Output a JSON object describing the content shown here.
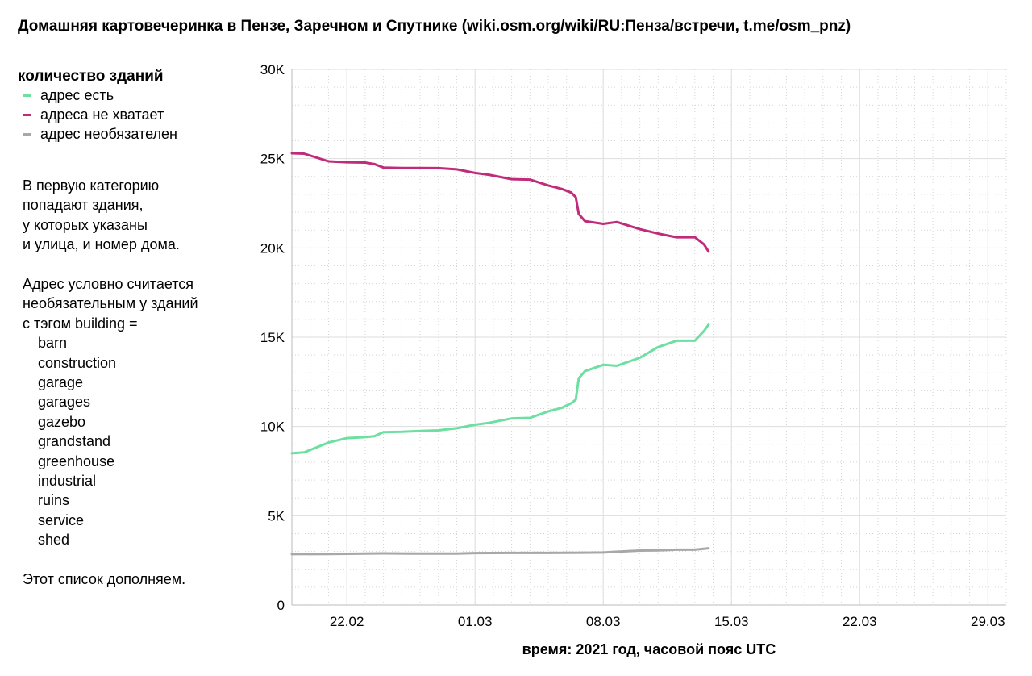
{
  "title": "Домашняя картовечеринка в Пензе, Заречном и Спутнике (wiki.osm.org/wiki/RU:Пенза/встречи, t.me/osm_pnz)",
  "legend": {
    "title": "количество зданий",
    "items": [
      {
        "label": "адрес есть",
        "color": "#6ddfa0"
      },
      {
        "label": "адреса не хватает",
        "color": "#c02c7a"
      },
      {
        "label": "адрес необязателен",
        "color": "#a8a8a8"
      }
    ]
  },
  "notes": {
    "para1": [
      "В первую категорию",
      "попадают здания,",
      "у которых указаны",
      "и улица, и номер дома."
    ],
    "para2": [
      "Адрес условно считается",
      "необязательным у зданий",
      "с тэгом building ="
    ],
    "tags": [
      "barn",
      "construction",
      "garage",
      "garages",
      "gazebo",
      "grandstand",
      "greenhouse",
      "industrial",
      "ruins",
      "service",
      "shed"
    ],
    "footer": "Этот список дополняем."
  },
  "chart_data": {
    "type": "line",
    "xlabel": "время: 2021 год, часовой пояс UTC",
    "ylabel": "",
    "x_range": [
      "2021-02-19",
      "2021-03-30"
    ],
    "ylim": [
      0,
      30000
    ],
    "x_ticks": [
      {
        "date": "2021-02-22",
        "label": "22.02"
      },
      {
        "date": "2021-03-01",
        "label": "01.03"
      },
      {
        "date": "2021-03-08",
        "label": "08.03"
      },
      {
        "date": "2021-03-15",
        "label": "15.03"
      },
      {
        "date": "2021-03-22",
        "label": "22.03"
      },
      {
        "date": "2021-03-29",
        "label": "29.03"
      }
    ],
    "y_ticks": [
      {
        "value": 0,
        "label": "0"
      },
      {
        "value": 5000,
        "label": "5K"
      },
      {
        "value": 10000,
        "label": "10K"
      },
      {
        "value": 15000,
        "label": "15K"
      },
      {
        "value": 20000,
        "label": "20K"
      },
      {
        "value": 25000,
        "label": "25K"
      },
      {
        "value": 30000,
        "label": "30K"
      }
    ],
    "grid": true,
    "series": [
      {
        "name": "адрес есть",
        "color": "#6ddfa0",
        "points": [
          [
            "2021-02-19T00:00",
            8500
          ],
          [
            "2021-02-19T16:00",
            8550
          ],
          [
            "2021-02-21T00:00",
            9100
          ],
          [
            "2021-02-22T00:00",
            9350
          ],
          [
            "2021-02-23T00:00",
            9400
          ],
          [
            "2021-02-23T12:00",
            9450
          ],
          [
            "2021-02-24T00:00",
            9680
          ],
          [
            "2021-02-25T00:00",
            9700
          ],
          [
            "2021-02-26T00:00",
            9750
          ],
          [
            "2021-02-27T00:00",
            9780
          ],
          [
            "2021-02-28T00:00",
            9900
          ],
          [
            "2021-03-01T00:00",
            10100
          ],
          [
            "2021-03-01T18:00",
            10200
          ],
          [
            "2021-03-03T00:00",
            10450
          ],
          [
            "2021-03-04T00:00",
            10480
          ],
          [
            "2021-03-05T00:00",
            10850
          ],
          [
            "2021-03-05T18:00",
            11050
          ],
          [
            "2021-03-06T06:00",
            11300
          ],
          [
            "2021-03-06T12:00",
            11500
          ],
          [
            "2021-03-06T16:00",
            12700
          ],
          [
            "2021-03-07T00:00",
            13100
          ],
          [
            "2021-03-08T00:00",
            13450
          ],
          [
            "2021-03-08T18:00",
            13400
          ],
          [
            "2021-03-10T00:00",
            13850
          ],
          [
            "2021-03-11T00:00",
            14450
          ],
          [
            "2021-03-12T00:00",
            14800
          ],
          [
            "2021-03-13T00:00",
            14800
          ],
          [
            "2021-03-13T12:00",
            15350
          ],
          [
            "2021-03-13T18:00",
            15700
          ]
        ]
      },
      {
        "name": "адреса не хватает",
        "color": "#c02c7a",
        "points": [
          [
            "2021-02-19T00:00",
            25300
          ],
          [
            "2021-02-19T16:00",
            25280
          ],
          [
            "2021-02-21T00:00",
            24850
          ],
          [
            "2021-02-22T00:00",
            24800
          ],
          [
            "2021-02-23T00:00",
            24780
          ],
          [
            "2021-02-23T12:00",
            24700
          ],
          [
            "2021-02-24T00:00",
            24500
          ],
          [
            "2021-02-25T00:00",
            24480
          ],
          [
            "2021-02-26T00:00",
            24480
          ],
          [
            "2021-02-27T00:00",
            24470
          ],
          [
            "2021-02-28T00:00",
            24400
          ],
          [
            "2021-03-01T00:00",
            24200
          ],
          [
            "2021-03-01T18:00",
            24100
          ],
          [
            "2021-03-03T00:00",
            23850
          ],
          [
            "2021-03-04T00:00",
            23830
          ],
          [
            "2021-03-05T00:00",
            23500
          ],
          [
            "2021-03-05T18:00",
            23300
          ],
          [
            "2021-03-06T06:00",
            23100
          ],
          [
            "2021-03-06T12:00",
            22850
          ],
          [
            "2021-03-06T16:00",
            21900
          ],
          [
            "2021-03-07T00:00",
            21500
          ],
          [
            "2021-03-08T00:00",
            21350
          ],
          [
            "2021-03-08T18:00",
            21450
          ],
          [
            "2021-03-10T00:00",
            21050
          ],
          [
            "2021-03-11T00:00",
            20800
          ],
          [
            "2021-03-12T00:00",
            20600
          ],
          [
            "2021-03-13T00:00",
            20600
          ],
          [
            "2021-03-13T12:00",
            20200
          ],
          [
            "2021-03-13T18:00",
            19800
          ]
        ]
      },
      {
        "name": "адрес необязателен",
        "color": "#a8a8a8",
        "points": [
          [
            "2021-02-19T00:00",
            2850
          ],
          [
            "2021-02-21T00:00",
            2860
          ],
          [
            "2021-02-23T00:00",
            2880
          ],
          [
            "2021-02-24T00:00",
            2890
          ],
          [
            "2021-02-26T00:00",
            2880
          ],
          [
            "2021-02-28T00:00",
            2880
          ],
          [
            "2021-03-01T00:00",
            2910
          ],
          [
            "2021-03-03T00:00",
            2920
          ],
          [
            "2021-03-05T00:00",
            2920
          ],
          [
            "2021-03-07T00:00",
            2930
          ],
          [
            "2021-03-08T00:00",
            2940
          ],
          [
            "2021-03-09T00:00",
            3000
          ],
          [
            "2021-03-10T00:00",
            3050
          ],
          [
            "2021-03-11T00:00",
            3060
          ],
          [
            "2021-03-12T00:00",
            3100
          ],
          [
            "2021-03-13T00:00",
            3100
          ],
          [
            "2021-03-13T18:00",
            3180
          ]
        ]
      }
    ]
  }
}
